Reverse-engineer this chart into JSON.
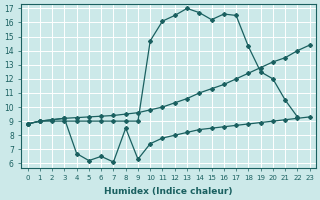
{
  "xlabel": "Humidex (Indice chaleur)",
  "xlim": [
    -0.5,
    23.5
  ],
  "ylim": [
    5.7,
    17.3
  ],
  "xticks": [
    0,
    1,
    2,
    3,
    4,
    5,
    6,
    7,
    8,
    9,
    10,
    11,
    12,
    13,
    14,
    15,
    16,
    17,
    18,
    19,
    20,
    21,
    22,
    23
  ],
  "yticks": [
    6,
    7,
    8,
    9,
    10,
    11,
    12,
    13,
    14,
    15,
    16,
    17
  ],
  "bg_color": "#cce9e9",
  "line_color": "#1a6060",
  "grid_color": "#ffffff",
  "curve_x": [
    0,
    1,
    2,
    3,
    4,
    5,
    6,
    7,
    8,
    9,
    10,
    11,
    12,
    13,
    14,
    15,
    16,
    17,
    18,
    19,
    20,
    21,
    22
  ],
  "curve_y": [
    8.8,
    9.0,
    9.0,
    9.0,
    9.0,
    9.0,
    9.0,
    9.0,
    9.0,
    9.0,
    14.7,
    16.1,
    16.5,
    17.0,
    16.7,
    16.2,
    16.6,
    16.5,
    14.3,
    12.5,
    12.0,
    10.5,
    9.3
  ],
  "upper_x": [
    0,
    1,
    2,
    3,
    4,
    5,
    6,
    7,
    8,
    9,
    10,
    11,
    12,
    13,
    14,
    15,
    16,
    17,
    18,
    19,
    20,
    21,
    22,
    23
  ],
  "upper_y": [
    8.8,
    9.0,
    9.1,
    9.2,
    9.25,
    9.3,
    9.35,
    9.4,
    9.5,
    9.6,
    9.8,
    10.0,
    10.3,
    10.6,
    11.0,
    11.3,
    11.6,
    12.0,
    12.4,
    12.8,
    13.2,
    13.5,
    14.0,
    14.4
  ],
  "lower_x": [
    0,
    1,
    2,
    3,
    4,
    5,
    6,
    7,
    8,
    9,
    10,
    11,
    12,
    13,
    14,
    15,
    16,
    17,
    18,
    19,
    20,
    21,
    22,
    23
  ],
  "lower_y": [
    8.8,
    9.0,
    9.1,
    9.2,
    6.7,
    6.2,
    6.5,
    6.1,
    8.5,
    6.3,
    7.4,
    7.8,
    8.0,
    8.2,
    8.4,
    8.5,
    8.6,
    8.7,
    8.8,
    8.9,
    9.0,
    9.1,
    9.2,
    9.3
  ]
}
